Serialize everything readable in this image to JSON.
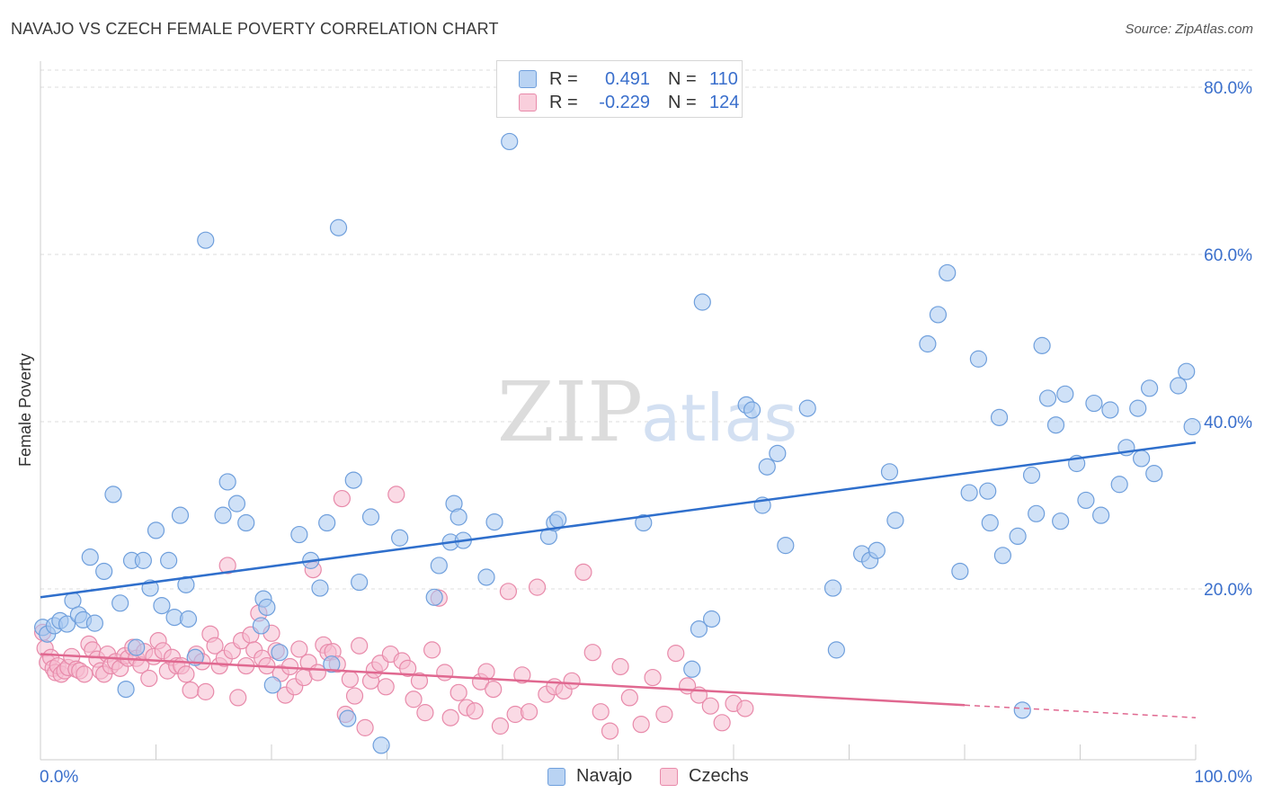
{
  "title": "NAVAJO VS CZECH FEMALE POVERTY CORRELATION CHART",
  "source": "Source: ZipAtlas.com",
  "watermark": {
    "zip": "ZIP",
    "atlas": "atlas"
  },
  "colors": {
    "navajo_fill": "#a8c8f0",
    "navajo_stroke": "#6f9fdc",
    "navajo_line": "#2f6fcc",
    "czech_fill": "#f6bcd0",
    "czech_stroke": "#e88aaa",
    "czech_line": "#e06890",
    "tick_label": "#3a6fcc",
    "grid": "#dddddd"
  },
  "legend_top": {
    "rows": [
      {
        "r_label": "R =",
        "r_value": "0.491",
        "n_label": "N =",
        "n_value": "110"
      },
      {
        "r_label": "R =",
        "r_value": "-0.229",
        "n_label": "N =",
        "n_value": "124"
      }
    ]
  },
  "legend_bottom": {
    "items": [
      "Navajo",
      "Czechs"
    ]
  },
  "chart_data": {
    "type": "scatter",
    "title": "NAVAJO VS CZECH FEMALE POVERTY CORRELATION CHART",
    "xlabel": "",
    "ylabel": "Female Poverty",
    "xlim": [
      0,
      100
    ],
    "ylim": [
      0,
      82
    ],
    "x_tick_labels": [
      "0.0%",
      "100.0%"
    ],
    "y_ticks": [
      20,
      40,
      60,
      80
    ],
    "y_tick_labels": [
      "20.0%",
      "40.0%",
      "60.0%",
      "80.0%"
    ],
    "grid": true,
    "legend": "top-center",
    "series": [
      {
        "name": "Navajo",
        "r": 0.491,
        "n": 110,
        "trend": {
          "x": [
            0,
            100
          ],
          "y": [
            19.0,
            37.5
          ]
        },
        "points": [
          [
            0.2,
            15.4
          ],
          [
            0.6,
            14.6
          ],
          [
            1.2,
            15.6
          ],
          [
            1.7,
            16.2
          ],
          [
            2.3,
            15.8
          ],
          [
            2.8,
            18.6
          ],
          [
            3.3,
            16.9
          ],
          [
            3.7,
            16.3
          ],
          [
            4.3,
            23.8
          ],
          [
            4.7,
            15.9
          ],
          [
            5.5,
            22.1
          ],
          [
            6.3,
            31.3
          ],
          [
            6.9,
            18.3
          ],
          [
            7.4,
            8.0
          ],
          [
            7.9,
            23.4
          ],
          [
            8.3,
            13.0
          ],
          [
            8.9,
            23.4
          ],
          [
            9.5,
            20.1
          ],
          [
            10.0,
            27.0
          ],
          [
            10.5,
            18.0
          ],
          [
            11.1,
            23.4
          ],
          [
            11.6,
            16.6
          ],
          [
            12.1,
            28.8
          ],
          [
            12.6,
            20.5
          ],
          [
            12.8,
            16.4
          ],
          [
            13.4,
            11.8
          ],
          [
            14.3,
            61.7
          ],
          [
            15.8,
            28.8
          ],
          [
            16.2,
            32.8
          ],
          [
            17.0,
            30.2
          ],
          [
            17.8,
            27.9
          ],
          [
            19.1,
            15.6
          ],
          [
            19.3,
            18.8
          ],
          [
            19.6,
            17.8
          ],
          [
            20.1,
            8.5
          ],
          [
            20.7,
            12.4
          ],
          [
            22.4,
            26.5
          ],
          [
            23.4,
            23.4
          ],
          [
            24.2,
            20.1
          ],
          [
            24.8,
            27.9
          ],
          [
            25.2,
            11.0
          ],
          [
            25.8,
            63.2
          ],
          [
            26.6,
            4.5
          ],
          [
            27.1,
            33.0
          ],
          [
            27.6,
            20.8
          ],
          [
            28.6,
            28.6
          ],
          [
            29.5,
            1.3
          ],
          [
            31.1,
            26.1
          ],
          [
            34.1,
            19.0
          ],
          [
            34.5,
            22.8
          ],
          [
            35.5,
            25.6
          ],
          [
            35.8,
            30.2
          ],
          [
            36.2,
            28.6
          ],
          [
            36.6,
            25.8
          ],
          [
            38.6,
            21.4
          ],
          [
            39.3,
            28.0
          ],
          [
            40.6,
            73.5
          ],
          [
            44.0,
            26.3
          ],
          [
            44.5,
            27.9
          ],
          [
            44.8,
            28.3
          ],
          [
            52.2,
            27.9
          ],
          [
            56.4,
            10.4
          ],
          [
            57.0,
            15.2
          ],
          [
            57.3,
            54.3
          ],
          [
            58.1,
            16.4
          ],
          [
            61.1,
            42.0
          ],
          [
            61.6,
            41.4
          ],
          [
            62.5,
            30.0
          ],
          [
            62.9,
            34.6
          ],
          [
            63.8,
            36.2
          ],
          [
            64.5,
            25.2
          ],
          [
            66.4,
            41.6
          ],
          [
            68.6,
            20.1
          ],
          [
            68.9,
            12.7
          ],
          [
            71.1,
            24.2
          ],
          [
            71.8,
            23.4
          ],
          [
            72.4,
            24.6
          ],
          [
            73.5,
            34.0
          ],
          [
            74.0,
            28.2
          ],
          [
            76.8,
            49.3
          ],
          [
            77.7,
            52.8
          ],
          [
            78.5,
            57.8
          ],
          [
            79.6,
            22.1
          ],
          [
            80.4,
            31.5
          ],
          [
            81.2,
            47.5
          ],
          [
            82.0,
            31.7
          ],
          [
            82.2,
            27.9
          ],
          [
            83.0,
            40.5
          ],
          [
            83.3,
            24.0
          ],
          [
            84.6,
            26.3
          ],
          [
            85.0,
            5.5
          ],
          [
            85.8,
            33.6
          ],
          [
            86.2,
            29.0
          ],
          [
            86.7,
            49.1
          ],
          [
            87.2,
            42.8
          ],
          [
            87.9,
            39.6
          ],
          [
            88.3,
            28.1
          ],
          [
            88.7,
            43.3
          ],
          [
            89.7,
            35.0
          ],
          [
            90.5,
            30.6
          ],
          [
            91.2,
            42.2
          ],
          [
            91.8,
            28.8
          ],
          [
            92.6,
            41.4
          ],
          [
            93.4,
            32.5
          ],
          [
            94.0,
            36.9
          ],
          [
            95.0,
            41.6
          ],
          [
            95.3,
            35.6
          ],
          [
            96.0,
            44.0
          ],
          [
            96.4,
            33.8
          ],
          [
            98.5,
            44.3
          ],
          [
            99.2,
            46.0
          ],
          [
            99.7,
            39.4
          ]
        ]
      },
      {
        "name": "Czechs",
        "r": -0.229,
        "n": 124,
        "trend": {
          "x": [
            0,
            80
          ],
          "y": [
            12.2,
            6.1
          ]
        },
        "trend_dashed": {
          "x": [
            80,
            100
          ],
          "y": [
            6.1,
            4.6
          ]
        },
        "points": [
          [
            0.2,
            14.8
          ],
          [
            0.4,
            12.9
          ],
          [
            0.6,
            11.2
          ],
          [
            0.9,
            11.8
          ],
          [
            1.1,
            10.5
          ],
          [
            1.3,
            10.0
          ],
          [
            1.5,
            10.8
          ],
          [
            1.8,
            9.8
          ],
          [
            2.1,
            10.2
          ],
          [
            2.4,
            10.6
          ],
          [
            2.7,
            11.9
          ],
          [
            3.1,
            10.4
          ],
          [
            3.4,
            10.2
          ],
          [
            3.8,
            9.8
          ],
          [
            4.2,
            13.4
          ],
          [
            4.5,
            12.7
          ],
          [
            4.9,
            11.6
          ],
          [
            5.2,
            10.2
          ],
          [
            5.5,
            9.8
          ],
          [
            5.8,
            12.2
          ],
          [
            6.1,
            10.8
          ],
          [
            6.5,
            11.3
          ],
          [
            6.9,
            10.5
          ],
          [
            7.3,
            12.0
          ],
          [
            7.6,
            11.7
          ],
          [
            8.0,
            13.0
          ],
          [
            8.3,
            11.7
          ],
          [
            8.7,
            10.9
          ],
          [
            9.0,
            12.5
          ],
          [
            9.4,
            9.3
          ],
          [
            9.8,
            11.9
          ],
          [
            10.2,
            13.8
          ],
          [
            10.6,
            12.6
          ],
          [
            11.0,
            10.2
          ],
          [
            11.4,
            11.8
          ],
          [
            11.8,
            10.8
          ],
          [
            12.2,
            10.8
          ],
          [
            12.6,
            9.8
          ],
          [
            13.0,
            7.9
          ],
          [
            13.5,
            12.2
          ],
          [
            14.0,
            11.3
          ],
          [
            14.3,
            7.7
          ],
          [
            14.7,
            14.6
          ],
          [
            15.1,
            13.2
          ],
          [
            15.5,
            10.8
          ],
          [
            15.9,
            11.7
          ],
          [
            16.2,
            22.8
          ],
          [
            16.6,
            12.6
          ],
          [
            17.1,
            7.0
          ],
          [
            17.4,
            13.8
          ],
          [
            17.8,
            10.8
          ],
          [
            18.2,
            14.5
          ],
          [
            18.5,
            12.7
          ],
          [
            18.9,
            17.1
          ],
          [
            19.2,
            11.7
          ],
          [
            19.6,
            10.8
          ],
          [
            20.0,
            14.7
          ],
          [
            20.4,
            12.6
          ],
          [
            20.8,
            9.9
          ],
          [
            21.2,
            7.3
          ],
          [
            21.6,
            10.7
          ],
          [
            22.0,
            8.3
          ],
          [
            22.4,
            12.8
          ],
          [
            22.8,
            9.4
          ],
          [
            23.2,
            11.2
          ],
          [
            23.6,
            22.3
          ],
          [
            24.0,
            10.0
          ],
          [
            24.5,
            13.3
          ],
          [
            24.9,
            12.4
          ],
          [
            25.3,
            12.5
          ],
          [
            25.7,
            11.0
          ],
          [
            26.1,
            30.8
          ],
          [
            26.4,
            5.0
          ],
          [
            26.8,
            9.2
          ],
          [
            27.2,
            7.2
          ],
          [
            27.6,
            13.2
          ],
          [
            28.1,
            3.4
          ],
          [
            28.6,
            9.0
          ],
          [
            28.9,
            10.3
          ],
          [
            29.4,
            11.1
          ],
          [
            29.9,
            8.3
          ],
          [
            30.3,
            12.2
          ],
          [
            30.8,
            31.3
          ],
          [
            31.3,
            11.4
          ],
          [
            31.8,
            10.5
          ],
          [
            32.3,
            6.8
          ],
          [
            32.8,
            9.0
          ],
          [
            33.3,
            5.2
          ],
          [
            33.9,
            12.7
          ],
          [
            34.5,
            18.9
          ],
          [
            35.0,
            10.0
          ],
          [
            35.5,
            4.6
          ],
          [
            36.2,
            7.6
          ],
          [
            36.9,
            5.8
          ],
          [
            37.6,
            5.4
          ],
          [
            38.1,
            8.9
          ],
          [
            38.6,
            10.1
          ],
          [
            39.2,
            8.0
          ],
          [
            39.8,
            3.6
          ],
          [
            40.5,
            19.7
          ],
          [
            41.1,
            5.0
          ],
          [
            41.7,
            9.7
          ],
          [
            42.3,
            5.3
          ],
          [
            43.0,
            20.2
          ],
          [
            43.8,
            7.4
          ],
          [
            44.5,
            8.3
          ],
          [
            45.3,
            7.8
          ],
          [
            46.0,
            9.0
          ],
          [
            47.0,
            22.0
          ],
          [
            47.8,
            12.4
          ],
          [
            48.5,
            5.3
          ],
          [
            49.3,
            3.0
          ],
          [
            50.2,
            10.7
          ],
          [
            51.0,
            7.0
          ],
          [
            52.0,
            3.8
          ],
          [
            53.0,
            9.4
          ],
          [
            54.0,
            5.0
          ],
          [
            55.0,
            12.3
          ],
          [
            56.0,
            8.4
          ],
          [
            57.0,
            7.3
          ],
          [
            58.0,
            6.0
          ],
          [
            59.0,
            4.0
          ],
          [
            60.0,
            6.3
          ],
          [
            61.0,
            5.7
          ]
        ]
      }
    ]
  }
}
